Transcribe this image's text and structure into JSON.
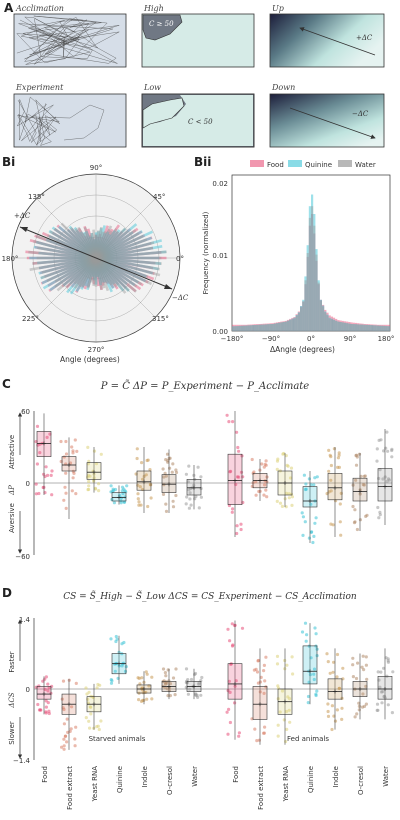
{
  "panel_labels": {
    "A": "A",
    "Bi": "Bi",
    "Bii": "Bii",
    "C": "C",
    "D": "D"
  },
  "panel_a": {
    "acclimation": "Acclimation",
    "experiment": "Experiment",
    "high": "High",
    "low": "Low",
    "up": "Up",
    "down": "Down",
    "high_cond": "C ≥ 50",
    "low_cond": "C < 50",
    "up_delta": "+ΔC",
    "down_delta": "−ΔC"
  },
  "panel_bi": {
    "deg_90": "90°",
    "deg_45": "45°",
    "deg_135": "135°",
    "deg_0": "0°",
    "deg_180": "180°",
    "deg_225": "225°",
    "deg_270": "270°",
    "deg_315": "315°",
    "plus_dc": "+ΔC",
    "minus_dc": "−ΔC",
    "xlabel": "Angle (degrees)"
  },
  "panel_bii": {
    "legend": [
      "Food",
      "Quinine",
      "Water"
    ],
    "ylabel": "Frequency (normalized)",
    "xlabel": "ΔAngle (degrees)",
    "xticks": [
      "−180°",
      "−90°",
      "0°",
      "90°",
      "180°"
    ],
    "yticks": [
      "0.02",
      "0.01",
      "0.00"
    ]
  },
  "panel_c": {
    "formula": "P = C̃    ΔP = P_Experiment − P_Acclimate",
    "yticks": [
      "60",
      "0",
      "−60"
    ],
    "attractive": "Attractive",
    "aversive": "Aversive",
    "axis_symbol": "ΔP"
  },
  "panel_d": {
    "formula": "CS = S̃_High − S̃_Low    ΔCS = CS_Experiment − CS_Acclimation",
    "yticks": [
      "1.4",
      "0",
      "−1.4"
    ],
    "faster": "Faster",
    "slower": "Slower",
    "axis_symbol": "ΔCS",
    "starved": "Starved animals",
    "fed": "Fed animals"
  },
  "categories": [
    "Food",
    "Food extract",
    "Yeast RNA",
    "Quinine",
    "Indole",
    "O-cresol",
    "Water"
  ],
  "colors": {
    "food": "#e8517a",
    "extract": "#d9826a",
    "rna": "#ddd27a",
    "quinine": "#3bc3d6",
    "indole": "#c89a58",
    "ocresol": "#b08a6a",
    "water": "#9a9a9a",
    "grey": "#555555",
    "teal": "#bfe3de"
  },
  "chart_data": [
    {
      "type": "box",
      "panel": "C-starved",
      "categories": [
        "Food",
        "Food extract",
        "Yeast RNA",
        "Quinine",
        "Indole",
        "O-cresol",
        "Water"
      ],
      "median": [
        33,
        15,
        9,
        -12,
        1,
        -1,
        -4
      ],
      "q1": [
        22,
        10,
        3,
        -15,
        -6,
        -8,
        -10
      ],
      "q3": [
        43,
        22,
        17,
        -8,
        10,
        7,
        3
      ],
      "wmin": [
        -10,
        -30,
        -8,
        -18,
        -25,
        -25,
        -22
      ],
      "wmax": [
        58,
        38,
        30,
        -2,
        30,
        28,
        15
      ],
      "ylim": [
        -60,
        60
      ]
    },
    {
      "type": "box",
      "panel": "C-fed",
      "categories": [
        "Food",
        "Food extract",
        "Yeast RNA",
        "Quinine",
        "Indole",
        "O-cresol",
        "Water"
      ],
      "median": [
        2,
        2,
        0,
        -15,
        -4,
        -7,
        -3
      ],
      "q1": [
        -18,
        -4,
        -10,
        -20,
        -14,
        -15,
        -15
      ],
      "q3": [
        24,
        8,
        10,
        -3,
        8,
        4,
        12
      ],
      "wmin": [
        -45,
        -15,
        -20,
        -50,
        -45,
        -40,
        -35
      ],
      "wmax": [
        60,
        20,
        25,
        10,
        30,
        25,
        45
      ],
      "ylim": [
        -60,
        60
      ]
    },
    {
      "type": "box",
      "panel": "D-starved",
      "categories": [
        "Food",
        "Food extract",
        "Yeast RNA",
        "Quinine",
        "Indole",
        "O-cresol",
        "Water"
      ],
      "median": [
        -0.1,
        -0.3,
        -0.3,
        0.5,
        0.0,
        0.05,
        0.05
      ],
      "q1": [
        -0.2,
        -0.5,
        -0.45,
        0.3,
        -0.08,
        -0.05,
        -0.05
      ],
      "q3": [
        0.05,
        -0.1,
        -0.15,
        0.7,
        0.08,
        0.15,
        0.15
      ],
      "wmin": [
        -0.5,
        -1.2,
        -0.8,
        0.1,
        -0.3,
        -0.2,
        -0.2
      ],
      "wmax": [
        0.25,
        0.2,
        0.1,
        1.05,
        0.35,
        0.4,
        0.4
      ],
      "ylim": [
        -1.4,
        1.4
      ]
    },
    {
      "type": "box",
      "panel": "D-fed",
      "categories": [
        "Food",
        "Food extract",
        "Yeast RNA",
        "Quinine",
        "Indole",
        "O-cresol",
        "Water"
      ],
      "median": [
        0.1,
        -0.3,
        -0.25,
        0.35,
        -0.05,
        0.0,
        0.0
      ],
      "q1": [
        -0.2,
        -0.6,
        -0.5,
        0.1,
        -0.2,
        -0.15,
        -0.2
      ],
      "q3": [
        0.5,
        0.05,
        0.0,
        0.85,
        0.2,
        0.15,
        0.25
      ],
      "wmin": [
        -1.0,
        -1.1,
        -1.1,
        -0.3,
        -0.8,
        -0.6,
        -0.6
      ],
      "wmax": [
        1.35,
        0.8,
        0.8,
        1.3,
        0.8,
        0.7,
        0.8
      ],
      "ylim": [
        -1.4,
        1.4
      ]
    },
    {
      "type": "bar",
      "panel": "Bii",
      "x": [
        -180,
        -150,
        -120,
        -90,
        -60,
        -40,
        -30,
        -20,
        -15,
        -10,
        -5,
        0,
        5,
        10,
        15,
        20,
        30,
        40,
        60,
        90,
        120,
        150,
        180
      ],
      "series": [
        {
          "name": "Food",
          "values": [
            0.0008,
            0.0008,
            0.0009,
            0.001,
            0.0013,
            0.0018,
            0.0025,
            0.0038,
            0.006,
            0.0095,
            0.0135,
            0.015,
            0.0125,
            0.009,
            0.006,
            0.004,
            0.0027,
            0.002,
            0.0014,
            0.0011,
            0.0009,
            0.0008,
            0.0008
          ]
        },
        {
          "name": "Quinine",
          "values": [
            0.0006,
            0.0007,
            0.0008,
            0.0009,
            0.0012,
            0.0017,
            0.0024,
            0.004,
            0.007,
            0.011,
            0.016,
            0.0175,
            0.015,
            0.0105,
            0.0065,
            0.004,
            0.0025,
            0.0017,
            0.0012,
            0.0009,
            0.0008,
            0.0007,
            0.0006
          ]
        },
        {
          "name": "Water",
          "values": [
            0.0006,
            0.0007,
            0.0008,
            0.0009,
            0.0012,
            0.0016,
            0.0023,
            0.0038,
            0.0065,
            0.01,
            0.0145,
            0.016,
            0.0135,
            0.0098,
            0.0062,
            0.0039,
            0.0024,
            0.0016,
            0.0012,
            0.0009,
            0.0008,
            0.0007,
            0.0006
          ]
        }
      ],
      "xlim": [
        -180,
        180
      ],
      "ylim": [
        0,
        0.02
      ]
    }
  ]
}
